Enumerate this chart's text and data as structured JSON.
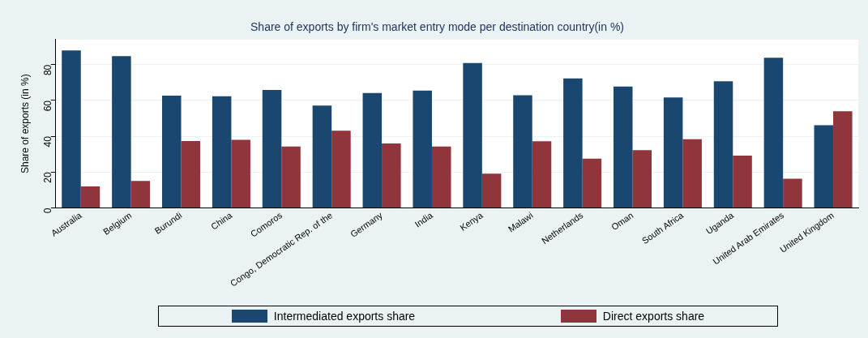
{
  "chart_data": {
    "type": "bar",
    "title": "Share of exports by firm's market entry mode per destination country(in %)",
    "ylabel": "Share of exports (in %)",
    "categories": [
      "Australia",
      "Belgium",
      "Burundi",
      "China",
      "Comoros",
      "Congo, Democratic Rep. of the",
      "Germany",
      "India",
      "Kenya",
      "Malawi",
      "Netherlands",
      "Oman",
      "South Africa",
      "Uganda",
      "United Arab Emirates",
      "United Kingdom"
    ],
    "series": [
      {
        "name": "Intermediated exports share",
        "color": "#1a476f",
        "values": [
          87.9,
          84.7,
          62.7,
          62.3,
          65.9,
          57.2,
          64.2,
          65.5,
          80.9,
          62.9,
          72.3,
          67.8,
          61.7,
          70.7,
          83.8,
          46.2
        ]
      },
      {
        "name": "Direct exports share",
        "color": "#90353b",
        "values": [
          12.0,
          15.1,
          37.3,
          38.0,
          34.3,
          43.1,
          36.0,
          34.3,
          19.2,
          37.2,
          27.5,
          32.3,
          38.4,
          29.2,
          16.3,
          54.0
        ]
      }
    ],
    "ylim": [
      0,
      94
    ],
    "yticks": [
      0,
      20,
      40,
      60,
      80
    ],
    "grid": "y",
    "legend": "bottom"
  }
}
